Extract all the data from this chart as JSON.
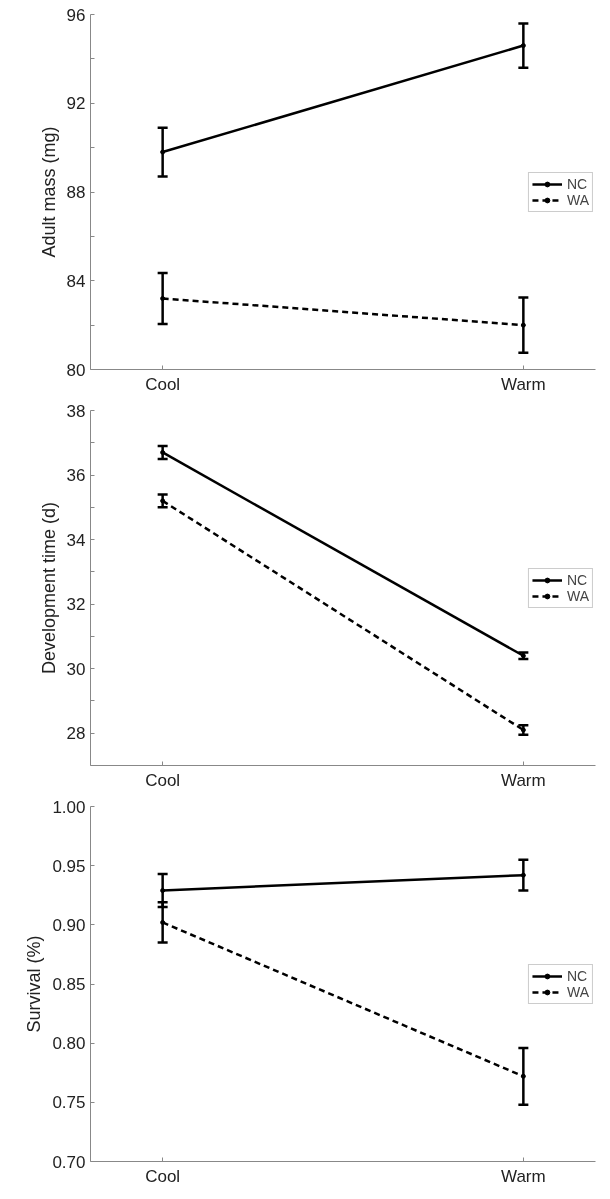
{
  "chart_data": [
    {
      "type": "line",
      "categories": [
        "Cool",
        "Warm"
      ],
      "ylabel": "Adult mass (mg)",
      "ylim": [
        80,
        96
      ],
      "yticks": [
        80,
        {
          "value": 82,
          "label": null
        },
        84,
        {
          "value": 86,
          "label": null
        },
        88,
        {
          "value": 90,
          "label": null
        },
        92,
        {
          "value": 94,
          "label": null
        },
        96
      ],
      "grid": false,
      "legend": "right",
      "marker": "circle",
      "series": [
        {
          "name": "NC",
          "color": "#000000",
          "line_style": "solid",
          "values": [
            89.8,
            94.6
          ],
          "errors": [
            1.1,
            1.0
          ]
        },
        {
          "name": "WA",
          "color": "#000000",
          "line_style": "dashed",
          "values": [
            83.2,
            82.0
          ],
          "errors": [
            1.15,
            1.25
          ]
        }
      ]
    },
    {
      "type": "line",
      "categories": [
        "Cool",
        "Warm"
      ],
      "ylabel": "Development time (d)",
      "ylim": [
        27,
        38
      ],
      "yticks": [
        {
          "value": 27,
          "label": null
        },
        28,
        {
          "value": 29,
          "label": null
        },
        30,
        {
          "value": 31,
          "label": null
        },
        32,
        {
          "value": 33,
          "label": null
        },
        34,
        {
          "value": 35,
          "label": null
        },
        36,
        {
          "value": 37,
          "label": null
        },
        38
      ],
      "grid": false,
      "legend": "right",
      "marker": "circle",
      "series": [
        {
          "name": "NC",
          "color": "#000000",
          "line_style": "solid",
          "values": [
            36.7,
            30.4
          ],
          "errors": [
            0.2,
            0.1
          ]
        },
        {
          "name": "WA",
          "color": "#000000",
          "line_style": "dashed",
          "values": [
            35.2,
            28.1
          ],
          "errors": [
            0.2,
            0.15
          ]
        }
      ]
    },
    {
      "type": "line",
      "categories": [
        "Cool",
        "Warm"
      ],
      "ylabel": "Survival (%)",
      "ylim": [
        0.7,
        1.0
      ],
      "yticks": [
        {
          "value": 0.7,
          "label": "0.70"
        },
        {
          "value": 0.75,
          "label": "0.75"
        },
        {
          "value": 0.8,
          "label": "0.80"
        },
        {
          "value": 0.85,
          "label": "0.85"
        },
        {
          "value": 0.9,
          "label": "0.90"
        },
        {
          "value": 0.95,
          "label": "0.95"
        },
        {
          "value": 1.0,
          "label": "1.00"
        }
      ],
      "grid": false,
      "legend": "right",
      "marker": "circle",
      "series": [
        {
          "name": "NC",
          "color": "#000000",
          "line_style": "solid",
          "values": [
            0.929,
            0.942
          ],
          "errors": [
            0.014,
            0.013
          ]
        },
        {
          "name": "WA",
          "color": "#000000",
          "line_style": "dashed",
          "values": [
            0.902,
            0.772
          ],
          "errors": [
            0.017,
            0.024
          ]
        }
      ]
    }
  ]
}
